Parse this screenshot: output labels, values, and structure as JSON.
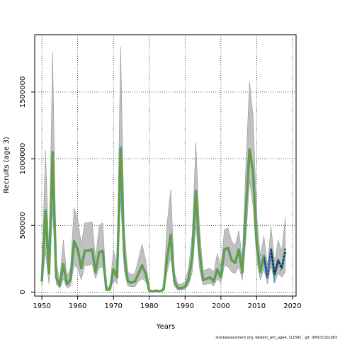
{
  "footer": "stockassessment.org, wkdem_win_age4, r11581 , git: df0b7c1bcb83",
  "chart_data": {
    "type": "line",
    "title": "",
    "xlabel": "Years",
    "ylabel": "Recruits (age 3)",
    "xlim": [
      1948,
      2021
    ],
    "ylim": [
      -30000,
      1930000
    ],
    "x_ticks": [
      1950,
      1960,
      1970,
      1980,
      1990,
      2000,
      2010,
      2020
    ],
    "x_tick_labels": [
      "1950",
      "1960",
      "1970",
      "1980",
      "1990",
      "2000",
      "2010",
      "2020"
    ],
    "y_ticks": [
      0,
      500000,
      1000000,
      1500000
    ],
    "y_tick_labels": [
      "0",
      "500000",
      "1000000",
      "1500000"
    ],
    "grid": true,
    "grid_style": "dotted",
    "colors": {
      "band": "#c0c0c0",
      "band_edge": "#8c8c8c",
      "main_line": "#7a9a2a",
      "retro_teal": "#2aa6a6",
      "retro_blue": "#3a3a9a",
      "retro_purple": "#9a6ac0",
      "retro_black": "#222222"
    },
    "series": [
      {
        "x": [
          1950,
          1951,
          1952,
          1953,
          1954,
          1955,
          1956,
          1957,
          1958,
          1959,
          1960,
          1961,
          1962,
          1963,
          1964,
          1965,
          1966,
          1967,
          1968,
          1969,
          1970,
          1971,
          1972,
          1973,
          1974,
          1975,
          1976,
          1977,
          1978,
          1979,
          1980,
          1981,
          1982,
          1983,
          1984,
          1985,
          1986,
          1987,
          1988,
          1989,
          1990,
          1991,
          1992,
          1993,
          1994,
          1995,
          1996,
          1997,
          1998,
          1999,
          2000,
          2001,
          2002,
          2003,
          2004,
          2005,
          2006,
          2007,
          2008,
          2009,
          2010,
          2011,
          2012,
          2013,
          2014,
          2015,
          2016,
          2017,
          2018
        ],
        "y": [
          80000,
          610000,
          140000,
          1050000,
          110000,
          50000,
          210000,
          60000,
          90000,
          380000,
          320000,
          180000,
          310000,
          310000,
          320000,
          150000,
          300000,
          310000,
          20000,
          20000,
          170000,
          110000,
          1080000,
          280000,
          80000,
          70000,
          80000,
          140000,
          200000,
          140000,
          10000,
          5000,
          10000,
          5000,
          20000,
          260000,
          430000,
          80000,
          30000,
          30000,
          40000,
          100000,
          260000,
          760000,
          310000,
          90000,
          100000,
          110000,
          80000,
          170000,
          110000,
          320000,
          330000,
          240000,
          220000,
          320000,
          150000,
          620000,
          1070000,
          900000,
          370000,
          150000,
          270000,
          110000,
          320000,
          130000,
          240000,
          180000,
          300000
        ],
        "lower": [
          50000,
          300000,
          60000,
          620000,
          60000,
          25000,
          100000,
          30000,
          45000,
          200000,
          180000,
          90000,
          200000,
          200000,
          210000,
          100000,
          180000,
          190000,
          10000,
          10000,
          90000,
          60000,
          700000,
          160000,
          45000,
          40000,
          40000,
          80000,
          100000,
          80000,
          5000,
          2000,
          5000,
          2000,
          10000,
          150000,
          260000,
          45000,
          15000,
          15000,
          20000,
          55000,
          150000,
          500000,
          180000,
          55000,
          60000,
          65000,
          45000,
          100000,
          70000,
          200000,
          190000,
          150000,
          140000,
          190000,
          90000,
          400000,
          840000,
          640000,
          240000,
          90000,
          170000,
          60000,
          200000,
          75000,
          140000,
          110000,
          150000
        ],
        "upper": [
          130000,
          1070000,
          280000,
          1800000,
          210000,
          100000,
          390000,
          120000,
          180000,
          630000,
          550000,
          360000,
          520000,
          520000,
          530000,
          250000,
          500000,
          520000,
          40000,
          40000,
          320000,
          200000,
          1840000,
          480000,
          150000,
          130000,
          140000,
          250000,
          360000,
          240000,
          20000,
          10000,
          20000,
          10000,
          40000,
          520000,
          770000,
          150000,
          60000,
          60000,
          80000,
          190000,
          440000,
          1120000,
          500000,
          160000,
          170000,
          180000,
          150000,
          290000,
          190000,
          470000,
          480000,
          380000,
          350000,
          460000,
          250000,
          960000,
          1580000,
          1320000,
          580000,
          270000,
          420000,
          200000,
          490000,
          230000,
          390000,
          310000,
          560000
        ]
      },
      {
        "x": [
          2010,
          2011,
          2012,
          2013,
          2014
        ],
        "y": [
          370000,
          150000,
          270000,
          110000,
          330000
        ]
      },
      {
        "x": [
          2011,
          2012,
          2013,
          2014,
          2015
        ],
        "y": [
          150000,
          270000,
          110000,
          320000,
          70000
        ]
      },
      {
        "x": [
          2012,
          2013,
          2014,
          2015,
          2016
        ],
        "y": [
          270000,
          110000,
          320000,
          130000,
          230000
        ]
      },
      {
        "x": [
          2013,
          2014,
          2015,
          2016,
          2017
        ],
        "y": [
          110000,
          320000,
          130000,
          240000,
          150000
        ]
      },
      {
        "x": [
          2014,
          2015,
          2016,
          2017,
          2018
        ],
        "y": [
          320000,
          130000,
          240000,
          180000,
          330000
        ]
      }
    ]
  }
}
